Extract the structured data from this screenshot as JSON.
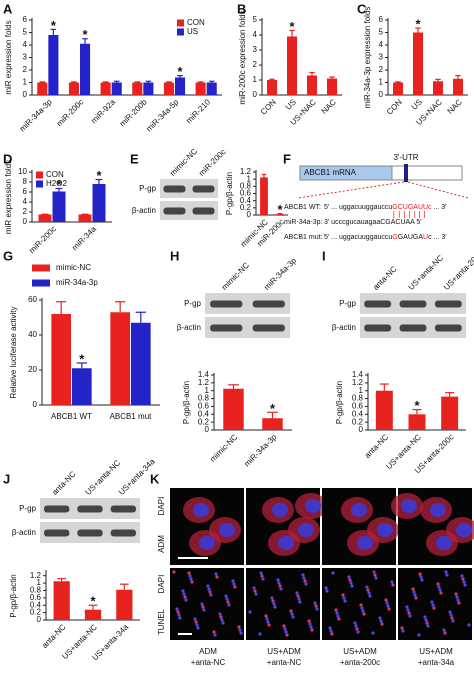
{
  "chart_data": [
    {
      "panel": "A",
      "type": "bar",
      "ylabel": "miR expression folds",
      "categories": [
        "miR-34a-3p",
        "miR-200c",
        "miR-92a",
        "miR-200b",
        "miR-34a-5p",
        "miR-210"
      ],
      "series": [
        {
          "name": "CON",
          "color": "#e8231f",
          "values": [
            1,
            1,
            1,
            1,
            1,
            1
          ],
          "errors": [
            0.05,
            0.05,
            0.05,
            0.05,
            0.05,
            0.05
          ],
          "markers": [
            null,
            null,
            null,
            null,
            null,
            null
          ]
        },
        {
          "name": "US",
          "color": "#2323c8",
          "values": [
            4.8,
            4.1,
            1.0,
            1.0,
            1.4,
            1.0
          ],
          "errors": [
            0.45,
            0.4,
            0.1,
            0.1,
            0.15,
            0.1
          ],
          "markers": [
            "*",
            "*",
            null,
            null,
            "*",
            null
          ]
        }
      ],
      "ylim": [
        0,
        6
      ],
      "yticks": [
        0,
        1,
        2,
        3,
        4,
        5,
        6
      ],
      "legend": "upper right"
    },
    {
      "panel": "B",
      "type": "bar",
      "ylabel": "miR-200c expression folds",
      "categories": [
        "CON",
        "US",
        "US+NAC",
        "NAC"
      ],
      "values": [
        1,
        3.9,
        1.3,
        1.1
      ],
      "errors": [
        0.05,
        0.4,
        0.2,
        0.1
      ],
      "markers": [
        null,
        "*",
        null,
        null
      ],
      "color": "#e8231f",
      "ylim": [
        0,
        5
      ],
      "yticks": [
        0,
        1,
        2,
        3,
        4,
        5
      ]
    },
    {
      "panel": "C",
      "type": "bar",
      "ylabel": "miR-34a-3p expression folds",
      "categories": [
        "CON",
        "US",
        "US+NAC",
        "NAC"
      ],
      "values": [
        1,
        5,
        1.1,
        1.3
      ],
      "errors": [
        0.05,
        0.35,
        0.15,
        0.25
      ],
      "markers": [
        null,
        "*",
        null,
        null
      ],
      "color": "#e8231f",
      "ylim": [
        0,
        6
      ],
      "yticks": [
        0,
        1,
        2,
        3,
        4,
        5,
        6
      ]
    },
    {
      "panel": "D",
      "type": "bar",
      "ylabel": "miR expression folds",
      "categories": [
        "miR-200c",
        "miR-34a"
      ],
      "series": [
        {
          "name": "CON",
          "color": "#e8231f",
          "values": [
            1.5,
            1.5
          ],
          "errors": [
            0.05,
            0.05
          ],
          "markers": [
            null,
            null
          ]
        },
        {
          "name": "H2O2",
          "color": "#2323c8",
          "values": [
            6.1,
            7.6
          ],
          "errors": [
            0.6,
            0.9
          ],
          "markers": [
            "*",
            "*"
          ]
        }
      ],
      "ylim": [
        0,
        10
      ],
      "yticks": [
        0,
        2,
        4,
        6,
        8,
        10
      ],
      "legend": "upper left"
    },
    {
      "panel": "E",
      "type": "bar",
      "ylabel": "P-gp/β-actin",
      "categories": [
        "mimic-NC",
        "miR-200c"
      ],
      "values": [
        1.05,
        0.03
      ],
      "errors": [
        0.08,
        0.01
      ],
      "markers": [
        null,
        "*"
      ],
      "color": "#e8231f",
      "ylim": [
        0,
        1.2
      ],
      "yticks": [
        0,
        0.2,
        0.4,
        0.6,
        0.8,
        1,
        1.2
      ],
      "blot_lanes": [
        "mimic-NC",
        "miR-200c"
      ],
      "blot_rows": [
        "P-gp",
        "β-actin"
      ]
    },
    {
      "panel": "G",
      "type": "bar",
      "ylabel": "Relative luciferase activity",
      "categories": [
        "ABCB1 WT",
        "ABCB1 mut"
      ],
      "series": [
        {
          "name": "mimic-NC",
          "color": "#e8231f",
          "values": [
            52,
            53
          ],
          "errors": [
            7,
            6
          ],
          "markers": [
            null,
            null
          ]
        },
        {
          "name": "miR-34a-3p",
          "color": "#2323c8",
          "values": [
            21,
            47
          ],
          "errors": [
            3,
            6
          ],
          "markers": [
            "*",
            null
          ]
        }
      ],
      "ylim": [
        0,
        60
      ],
      "yticks": [
        0,
        20,
        40,
        60
      ],
      "legend": "above"
    },
    {
      "panel": "H",
      "type": "bar",
      "ylabel": "P-gp/β-actin",
      "categories": [
        "mimic-NC",
        "miR-34a-3p"
      ],
      "values": [
        1.05,
        0.3
      ],
      "errors": [
        0.1,
        0.15
      ],
      "markers": [
        null,
        "*"
      ],
      "color": "#e8231f",
      "ylim": [
        0,
        1.4
      ],
      "yticks": [
        0,
        0.2,
        0.4,
        0.6,
        0.8,
        1,
        1.2,
        1.4
      ],
      "blot_lanes": [
        "mimic-NC",
        "miR-34a-3p"
      ],
      "blot_rows": [
        "P-gp",
        "β-actin"
      ]
    },
    {
      "panel": "I",
      "type": "bar",
      "ylabel": "P-gp/β-actin",
      "categories": [
        "anta-NC",
        "US+anta-NC",
        "US+anta-200c"
      ],
      "values": [
        1.0,
        0.4,
        0.85
      ],
      "errors": [
        0.17,
        0.12,
        0.1
      ],
      "markers": [
        null,
        "*",
        null
      ],
      "color": "#e8231f",
      "ylim": [
        0,
        1.4
      ],
      "yticks": [
        0,
        0.2,
        0.4,
        0.6,
        0.8,
        1,
        1.2,
        1.4
      ],
      "blot_lanes": [
        "anta-NC",
        "US+anta-NC",
        "US+anta-200c"
      ],
      "blot_rows": [
        "P-gp",
        "β-actin"
      ]
    },
    {
      "panel": "J",
      "type": "bar",
      "ylabel": "P-gp/β-actin",
      "categories": [
        "anta-NC",
        "US+anta-NC",
        "US+anta-34a"
      ],
      "values": [
        1.05,
        0.28,
        0.82
      ],
      "errors": [
        0.07,
        0.12,
        0.15
      ],
      "markers": [
        null,
        "*",
        null
      ],
      "color": "#e8231f",
      "ylim": [
        0,
        1.3
      ],
      "yticks": [
        0,
        0.2,
        0.4,
        0.6,
        0.8,
        1,
        1.2
      ],
      "blot_lanes": [
        "anta-NC",
        "US+anta-NC",
        "US+anta-34a"
      ],
      "blot_rows": [
        "P-gp",
        "β-actin"
      ]
    }
  ],
  "gene_diagram": {
    "panel": "F",
    "utr_label": "3'-UTR",
    "mrna_label": "ABCB1 mRNA",
    "lines": [
      {
        "name": "ABCB1 WT:",
        "parts": [
          "5' ... uggacuuggauccu",
          "GCUGAUUc",
          " ... 3'"
        ]
      },
      {
        "name": "miR-34a-3p:",
        "parts": [
          "3' ucccgucauagaa",
          "CGACUAA",
          " 5'"
        ]
      },
      {
        "name": "ABCB1 mut:",
        "parts": [
          "5' ... uggacuuggauccu",
          "G",
          "GAUGA",
          "U",
          "c ... 3'"
        ]
      }
    ]
  },
  "microscopy": {
    "panel": "K",
    "row_labels": [
      [
        "DAPI",
        "ADM"
      ],
      [
        "DAPI",
        "TUNEL"
      ]
    ],
    "columns": [
      [
        "ADM",
        "+anta-NC"
      ],
      [
        "US+ADM",
        "+anta-NC"
      ],
      [
        "US+ADM",
        "+anta-200c"
      ],
      [
        "US+ADM",
        "+anta-34a"
      ]
    ]
  }
}
